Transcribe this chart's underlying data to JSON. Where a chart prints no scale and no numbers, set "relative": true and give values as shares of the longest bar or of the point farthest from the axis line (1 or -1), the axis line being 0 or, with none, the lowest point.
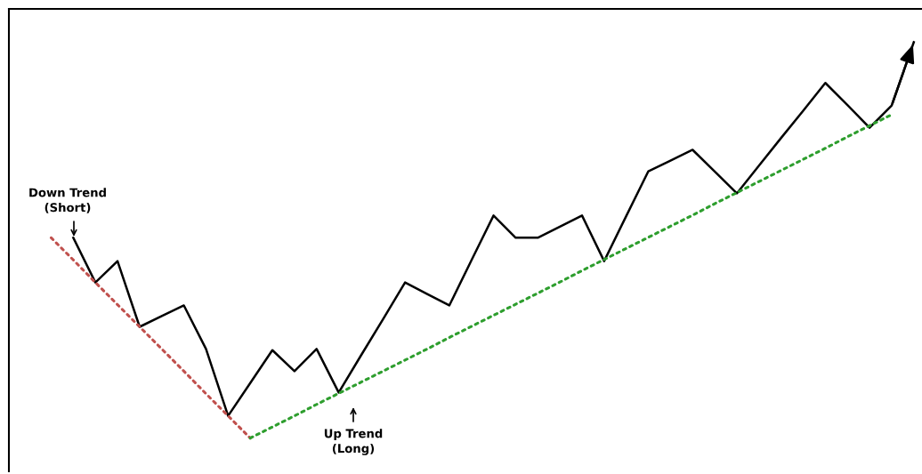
{
  "chart_data": {
    "type": "line",
    "relative": true,
    "categories": [
      null,
      null,
      null,
      null,
      null,
      null,
      null,
      null,
      null,
      null,
      null,
      null,
      null,
      null,
      null,
      null,
      null,
      null,
      null,
      null,
      null,
      null,
      null,
      null,
      null,
      null,
      null,
      null,
      null,
      null,
      null,
      null,
      null,
      null,
      null,
      null,
      null,
      null,
      null,
      null
    ],
    "series": [
      {
        "color": "#000000",
        "line_style": "solid",
        "values": [
          null,
          0.506,
          0.393,
          0.447,
          0.281,
          0.308,
          0.335,
          0.225,
          0.056,
          0.139,
          0.222,
          0.169,
          0.225,
          0.115,
          0.208,
          0.3,
          0.393,
          0.364,
          0.335,
          0.449,
          0.562,
          0.506,
          0.506,
          0.534,
          0.562,
          0.447,
          0.561,
          0.674,
          0.701,
          0.728,
          0.673,
          0.618,
          0.688,
          0.758,
          0.827,
          0.897,
          0.841,
          0.784,
          0.84,
          1.0
        ]
      },
      {
        "color": "#c0504d",
        "line_style": "dotted",
        "values": [
          0.506,
          0.45,
          0.393,
          0.337,
          0.281,
          0.225,
          0.169,
          0.112,
          0.056,
          0,
          null,
          null,
          null,
          null,
          null,
          null,
          null,
          null,
          null,
          null,
          null,
          null,
          null,
          null,
          null,
          null,
          null,
          null,
          null,
          null,
          null,
          null,
          null,
          null,
          null,
          null,
          null,
          null,
          null,
          null
        ]
      },
      {
        "color": "#2e9e2e",
        "line_style": "dotted",
        "values": [
          null,
          null,
          null,
          null,
          null,
          null,
          null,
          null,
          null,
          0,
          0.028,
          0.056,
          0.085,
          0.113,
          0.141,
          0.169,
          0.197,
          0.225,
          0.254,
          0.282,
          0.31,
          0.338,
          0.366,
          0.394,
          0.423,
          0.451,
          0.479,
          0.507,
          0.535,
          0.563,
          0.592,
          0.62,
          0.648,
          0.676,
          0.704,
          0.732,
          0.761,
          0.789,
          0.817,
          null
        ]
      }
    ],
    "annotations": [
      "Down Trend\n(Short)",
      "Up Trend\n(Long)"
    ]
  }
}
